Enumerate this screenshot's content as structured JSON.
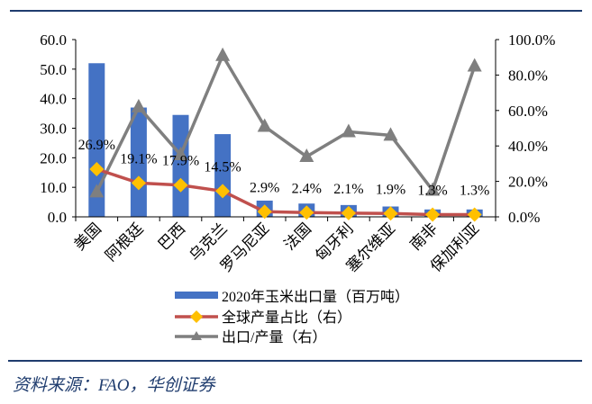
{
  "chart_data": {
    "type": "bar+line",
    "title": "",
    "categories": [
      "美国",
      "阿根廷",
      "巴西",
      "乌克兰",
      "罗马尼亚",
      "法国",
      "匈牙利",
      "塞尔维亚",
      "南非",
      "保加利亚"
    ],
    "series": [
      {
        "name": "2020年玉米出口量（百万吨）",
        "type": "bar",
        "axis": "left",
        "color": "#4472c4",
        "values": [
          52.0,
          37.0,
          34.5,
          28.0,
          5.5,
          4.5,
          4.0,
          3.5,
          2.5,
          2.5
        ]
      },
      {
        "name": "全球产量占比（右）",
        "type": "line",
        "axis": "right",
        "color": "#c0504d",
        "marker_color": "#ffc000",
        "values": [
          26.9,
          19.1,
          17.9,
          14.5,
          2.9,
          2.4,
          2.1,
          1.9,
          1.3,
          1.3
        ],
        "labels": [
          "26.9%",
          "19.1%",
          "17.9%",
          "14.5%",
          "2.9%",
          "2.4%",
          "2.1%",
          "1.9%",
          "1.3%",
          "1.3%"
        ]
      },
      {
        "name": "出口/产量（右）",
        "type": "line",
        "axis": "right",
        "color": "#7f7f7f",
        "values": [
          14,
          62,
          35,
          91,
          51,
          34,
          48,
          46,
          15,
          85
        ]
      }
    ],
    "left_axis": {
      "ticks": [
        "0.0",
        "10.0",
        "20.0",
        "30.0",
        "40.0",
        "50.0",
        "60.0"
      ],
      "ylim": [
        0,
        60
      ]
    },
    "right_axis": {
      "ticks": [
        "0.0%",
        "20.0%",
        "40.0%",
        "60.0%",
        "80.0%",
        "100.0%"
      ],
      "ylim": [
        0,
        100
      ]
    },
    "legend_position": "bottom",
    "grid": false
  },
  "legend": {
    "items": [
      "2020年玉米出口量（百万吨）",
      "全球产量占比（右）",
      "出口/产量（右）"
    ]
  },
  "source": "资料来源：FAO，华创证券"
}
